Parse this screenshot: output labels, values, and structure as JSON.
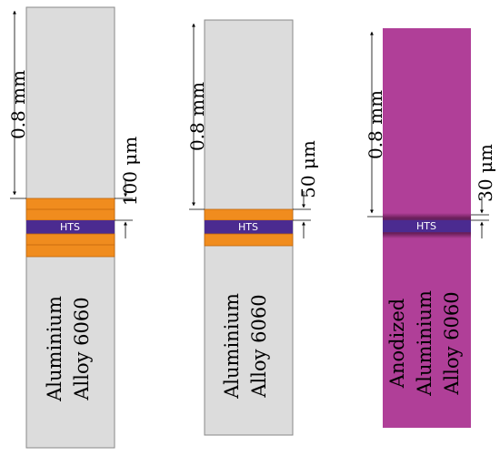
{
  "panels": [
    {
      "height_label": "0.8 mm",
      "thickness_label": "100 μm",
      "hts_label": "HTS",
      "material_lines": [
        "Aluminium",
        "Alloy 6060"
      ],
      "body_color": "#dcdcdc",
      "layer_color": "#f08c1e"
    },
    {
      "height_label": "0.8 mm",
      "thickness_label": "50 μm",
      "hts_label": "HTS",
      "material_lines": [
        "Aluminium",
        "Alloy 6060"
      ],
      "body_color": "#dcdcdc",
      "layer_color": "#f08c1e"
    },
    {
      "height_label": "0.8 mm",
      "thickness_label": "30 μm",
      "hts_label": "HTS",
      "material_lines": [
        "Anodized",
        "Aluminium",
        "Alloy 6060"
      ],
      "body_color": "#b03f98",
      "layer_color": "#5a1a4a"
    }
  ],
  "colors": {
    "hts": "#4b2b90",
    "line": "#000000"
  }
}
